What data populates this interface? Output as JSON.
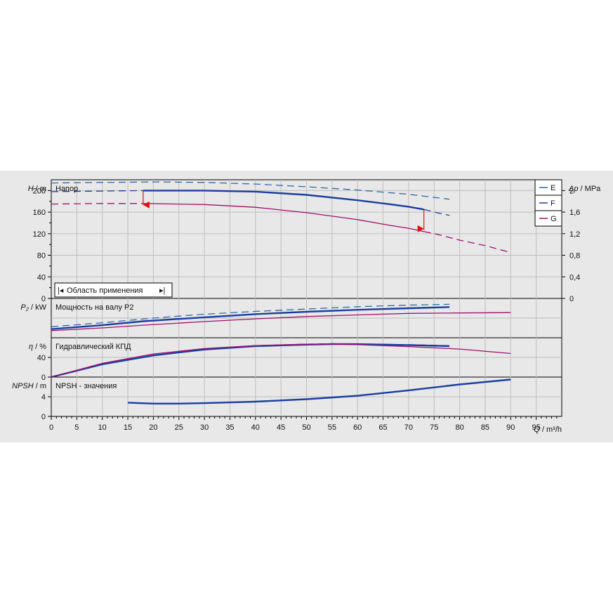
{
  "panels": {
    "head": {
      "axis_symbol": "H",
      "axis_unit": "m",
      "title": "Напор",
      "right_axis_symbol": "Δp",
      "right_axis_unit": "MPa"
    },
    "power": {
      "axis_symbol": "P₂",
      "axis_unit": "kW",
      "title": "Мощность на валу P2"
    },
    "eff": {
      "axis_symbol": "η",
      "axis_unit": "%",
      "title": "Гидравлический КПД"
    },
    "npsh": {
      "axis_symbol": "NPSH",
      "axis_unit": "m",
      "title": "NPSH - значения"
    }
  },
  "x_axis": {
    "symbol": "Q",
    "unit": "m³/h"
  },
  "range_label": "Область применения",
  "legend": [
    {
      "label": "E",
      "color": "#2e6aa8"
    },
    {
      "label": "F",
      "color": "#1a3ea0"
    },
    {
      "label": "G",
      "color": "#a0106e"
    }
  ],
  "chart_data": [
    {
      "type": "line",
      "name": "head",
      "xlim": [
        0,
        100
      ],
      "ylim": [
        0,
        220
      ],
      "x_ticks": [
        0,
        5,
        10,
        15,
        20,
        25,
        30,
        35,
        40,
        45,
        50,
        55,
        60,
        65,
        70,
        75,
        80,
        85,
        90,
        95
      ],
      "y_ticks": [
        0,
        40,
        80,
        120,
        160,
        200
      ],
      "y2_ticks": [
        "0",
        "0,4",
        "0,8",
        "1,2",
        "1,6",
        "2"
      ],
      "grid": true,
      "series": [
        {
          "name": "E",
          "color": "#2e6aa8",
          "style": "dash",
          "x": [
            0,
            10,
            20,
            30,
            40,
            50,
            60,
            70,
            78
          ],
          "y": [
            214,
            215,
            216,
            215,
            212,
            207,
            201,
            193,
            184
          ]
        },
        {
          "name": "F",
          "color": "#1a3ea0",
          "style": "dash",
          "x": [
            0,
            10,
            18
          ],
          "y": [
            198,
            199,
            200
          ]
        },
        {
          "name": "F",
          "color": "#1a3ea0",
          "style": "bold",
          "x": [
            18,
            25,
            30,
            40,
            50,
            60,
            66,
            70,
            73
          ],
          "y": [
            200,
            200,
            200,
            198,
            192,
            182,
            175,
            170,
            165
          ]
        },
        {
          "name": "F",
          "color": "#1a3ea0",
          "style": "dash",
          "x": [
            73,
            76,
            78
          ],
          "y": [
            165,
            158,
            154
          ]
        },
        {
          "name": "G",
          "color": "#a0106e",
          "style": "dash",
          "x": [
            0,
            10,
            18
          ],
          "y": [
            175,
            176,
            176
          ]
        },
        {
          "name": "G",
          "color": "#a0106e",
          "style": "solid",
          "x": [
            18,
            25,
            30,
            40,
            50,
            60,
            66,
            70,
            73
          ],
          "y": [
            176,
            175,
            174,
            169,
            159,
            146,
            136,
            130,
            124
          ]
        },
        {
          "name": "G",
          "color": "#a0106e",
          "style": "dash",
          "x": [
            73,
            76,
            80,
            85,
            90
          ],
          "y": [
            124,
            118,
            108,
            98,
            85
          ]
        }
      ],
      "range_marker": {
        "x_start": 18,
        "x_end": 73,
        "y_start": 200,
        "y_end": 165
      }
    },
    {
      "type": "line",
      "name": "power",
      "xlim": [
        0,
        100
      ],
      "series": [
        {
          "name": "E",
          "color": "#2e6aa8",
          "style": "dash",
          "x": [
            0,
            10,
            20,
            30,
            40,
            50,
            60,
            70,
            78
          ],
          "y": [
            0.28,
            0.38,
            0.5,
            0.6,
            0.67,
            0.73,
            0.79,
            0.83,
            0.85
          ]
        },
        {
          "name": "F",
          "color": "#1a3ea0",
          "style": "bold",
          "x": [
            0,
            10,
            18,
            30,
            40,
            50,
            60,
            70,
            78
          ],
          "y": [
            0.22,
            0.32,
            0.42,
            0.52,
            0.6,
            0.66,
            0.71,
            0.75,
            0.78
          ]
        },
        {
          "name": "G",
          "color": "#a0106e",
          "style": "solid",
          "x": [
            0,
            10,
            18,
            30,
            40,
            50,
            60,
            70,
            80,
            90
          ],
          "y": [
            0.18,
            0.25,
            0.32,
            0.41,
            0.48,
            0.54,
            0.58,
            0.62,
            0.63,
            0.64
          ]
        }
      ]
    },
    {
      "type": "line",
      "name": "efficiency",
      "xlim": [
        0,
        100
      ],
      "ylim": [
        0,
        80
      ],
      "y_ticks": [
        0,
        40
      ],
      "series": [
        {
          "name": "E",
          "color": "#2e6aa8",
          "style": "dash",
          "x": [
            0,
            10,
            20,
            30,
            40,
            50,
            55,
            60,
            70,
            78
          ],
          "y": [
            0,
            26,
            44,
            57,
            64,
            67,
            68,
            67,
            66,
            64
          ]
        },
        {
          "name": "F",
          "color": "#1a3ea0",
          "style": "bold",
          "x": [
            0,
            10,
            20,
            30,
            40,
            50,
            55,
            60,
            70,
            78
          ],
          "y": [
            0,
            26,
            44,
            56,
            63,
            66,
            67,
            67,
            65,
            63
          ]
        },
        {
          "name": "G",
          "color": "#a0106e",
          "style": "solid",
          "x": [
            0,
            10,
            20,
            30,
            40,
            50,
            55,
            60,
            70,
            80,
            90
          ],
          "y": [
            0,
            28,
            47,
            58,
            64,
            67,
            67,
            66,
            62,
            57,
            48
          ]
        }
      ]
    },
    {
      "type": "line",
      "name": "npsh",
      "xlim": [
        0,
        100
      ],
      "ylim": [
        0,
        8
      ],
      "y_ticks": [
        0,
        4
      ],
      "series": [
        {
          "name": "F",
          "color": "#1a3ea0",
          "style": "bold",
          "x": [
            15,
            20,
            25,
            30,
            40,
            50,
            60,
            70,
            80,
            90
          ],
          "y": [
            2.8,
            2.6,
            2.6,
            2.7,
            3.0,
            3.5,
            4.2,
            5.3,
            6.5,
            7.5
          ]
        }
      ]
    }
  ]
}
